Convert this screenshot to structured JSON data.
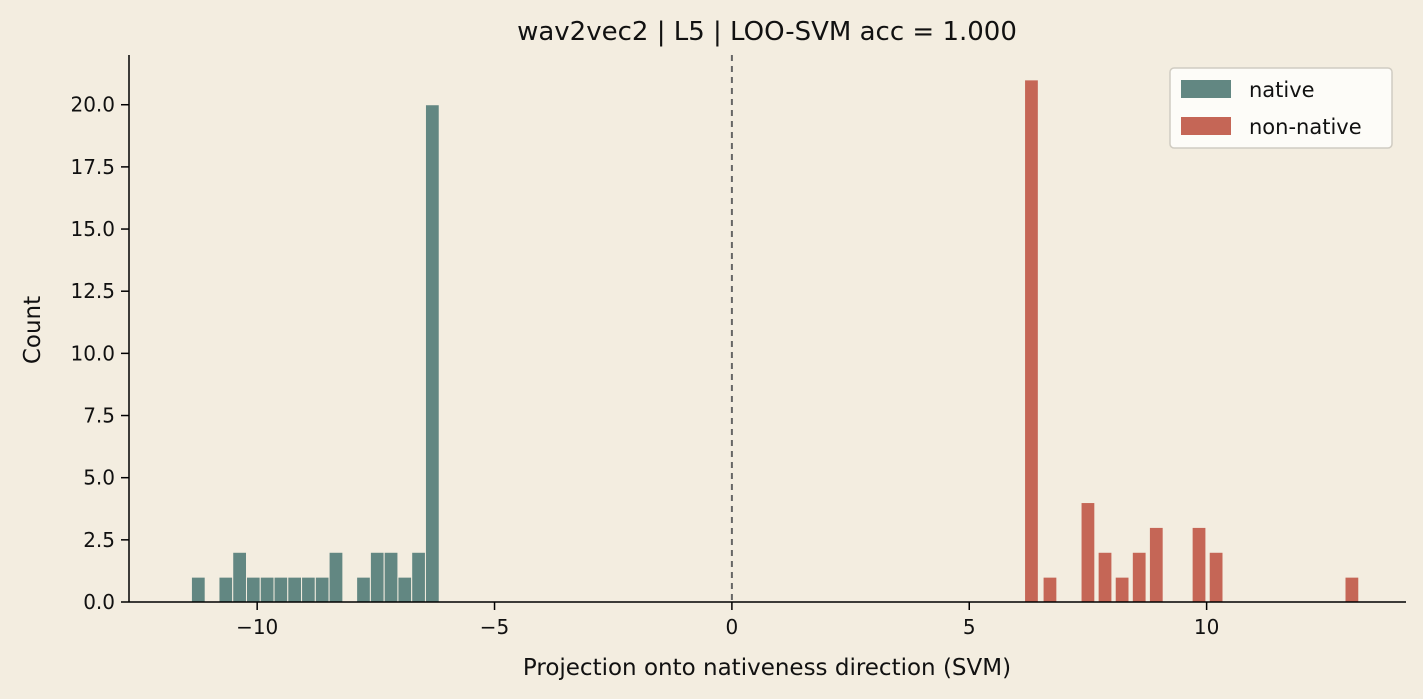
{
  "chart_data": {
    "type": "bar",
    "title": "wav2vec2 | L5 | LOO-SVM acc = 1.000",
    "xlabel": "Projection onto nativeness direction (SVM)",
    "ylabel": "Count",
    "xlim": [
      -12.7,
      14.2
    ],
    "ylim": [
      0,
      22
    ],
    "x_ticks": [
      -10,
      -5,
      0,
      5,
      10
    ],
    "x_tick_labels": [
      "−10",
      "−5",
      "0",
      "5",
      "10"
    ],
    "y_ticks": [
      0,
      2.5,
      5,
      7.5,
      10,
      12.5,
      15,
      17.5,
      20
    ],
    "y_tick_labels": [
      "0.0",
      "2.5",
      "5.0",
      "7.5",
      "10.0",
      "12.5",
      "15.0",
      "17.5",
      "20.0"
    ],
    "bin_width": 0.29,
    "decision_boundary": 0,
    "grid": false,
    "legend_position": "top-right",
    "series": [
      {
        "name": "native",
        "color": "#628782",
        "x": [
          -11.24,
          -10.66,
          -10.37,
          -10.08,
          -9.79,
          -9.5,
          -9.21,
          -8.92,
          -8.63,
          -8.34,
          -7.76,
          -7.47,
          -7.18,
          -6.89,
          -6.6,
          -6.31
        ],
        "values": [
          1,
          1,
          2,
          1,
          1,
          1,
          1,
          1,
          1,
          2,
          1,
          2,
          2,
          1,
          2,
          20
        ]
      },
      {
        "name": "non-native",
        "color": "#c56656",
        "x": [
          6.31,
          6.7,
          7.5,
          7.86,
          8.22,
          8.58,
          8.94,
          9.84,
          10.2,
          13.06
        ],
        "values": [
          21,
          1,
          4,
          2,
          1,
          2,
          3,
          3,
          2,
          1
        ]
      }
    ]
  }
}
